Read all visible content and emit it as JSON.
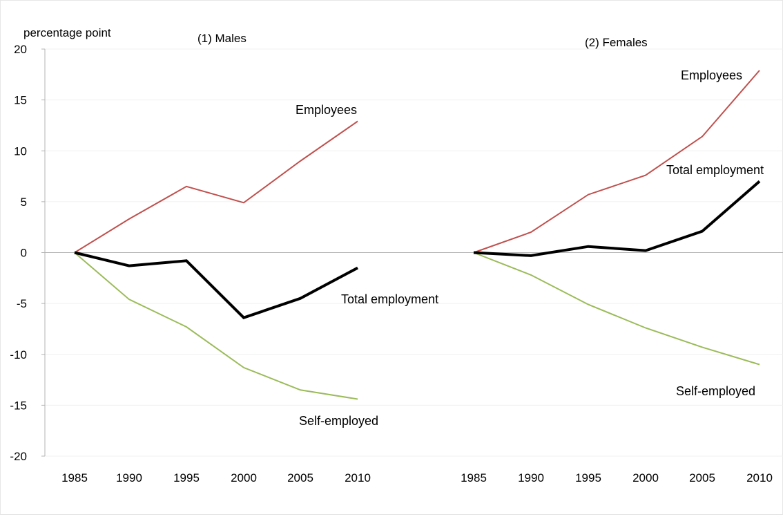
{
  "chart_data": {
    "type": "line",
    "ylabel": "percentage point",
    "ylim": [
      -20,
      20
    ],
    "yticks": [
      -20,
      -15,
      -10,
      -5,
      0,
      5,
      10,
      15,
      20
    ],
    "grid": true,
    "colors": {
      "Employees": "#c0504d",
      "Total employment": "#000000",
      "Self-employed": "#9bbb59",
      "axis": "#b3b3b3",
      "grid": "#f0f0f0"
    },
    "panels": [
      {
        "title": "(1)  Males",
        "x": [
          "1985",
          "1990",
          "1995",
          "2000",
          "2005",
          "2010"
        ],
        "series": [
          {
            "name": "Employees",
            "values": [
              0,
              3.3,
              6.5,
              4.9,
              9.0,
              12.9
            ]
          },
          {
            "name": "Total employment",
            "values": [
              0,
              -1.3,
              -0.8,
              -6.4,
              -4.5,
              -1.5
            ]
          },
          {
            "name": "Self-employed",
            "values": [
              0,
              -4.6,
              -7.3,
              -11.3,
              -13.5,
              -14.4
            ]
          }
        ]
      },
      {
        "title": "(2)  Females",
        "x": [
          "1985",
          "1990",
          "1995",
          "2000",
          "2005",
          "2010"
        ],
        "series": [
          {
            "name": "Employees",
            "values": [
              0,
              2.0,
              5.7,
              7.6,
              11.4,
              17.9
            ]
          },
          {
            "name": "Total employment",
            "values": [
              0,
              -0.3,
              0.6,
              0.2,
              2.1,
              7.0
            ]
          },
          {
            "name": "Self-employed",
            "values": [
              0,
              -2.2,
              -5.1,
              -7.4,
              -9.3,
              -11.0
            ]
          }
        ]
      }
    ]
  }
}
